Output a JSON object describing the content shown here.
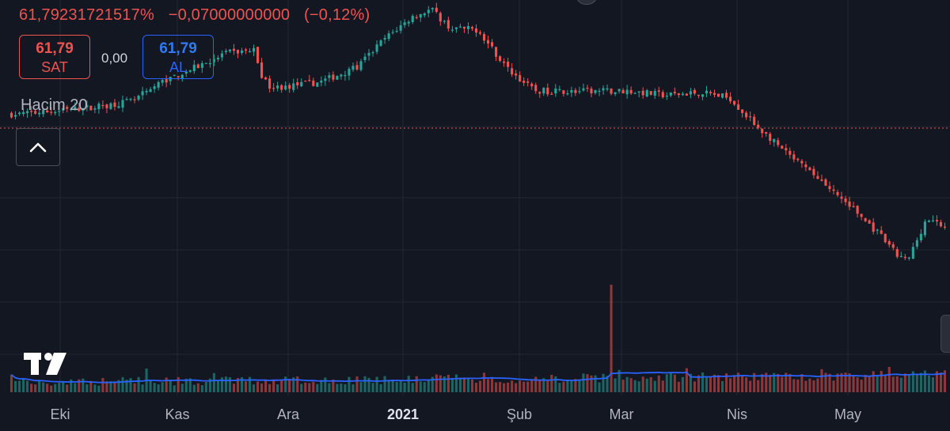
{
  "header": {
    "price": "61,79231721517%",
    "change": "−0,07000000000",
    "change_pct": "(−0,12%)"
  },
  "quote": {
    "sell_price": "61,79",
    "sell_label": "SAT",
    "spread": "0,00",
    "buy_price": "61,79",
    "buy_label": "AL"
  },
  "volume_indicator": {
    "label": "Hacim 20"
  },
  "colors": {
    "background": "#131722",
    "up": "#26a69a",
    "down": "#ef5350",
    "volume_ma": "#2962ff",
    "grid": "#232733",
    "price_line": "#ef5350"
  },
  "icons": {
    "collapse": "chevron-up-icon",
    "logo": "tradingview-logo-icon"
  },
  "chart_data": {
    "type": "candlestick",
    "x_tick_labels": [
      "Eki",
      "Kas",
      "Ara",
      "2021",
      "Şub",
      "Mar",
      "Nis",
      "May"
    ],
    "current_price": 61.79,
    "price_range": [
      40,
      90
    ],
    "price_anchors": [
      {
        "t": 0,
        "v": 75.4
      },
      {
        "t": 0.05,
        "v": 75.8
      },
      {
        "t": 0.1,
        "v": 76.6
      },
      {
        "t": 0.13,
        "v": 77.2
      },
      {
        "t": 0.16,
        "v": 79.8
      },
      {
        "t": 0.2,
        "v": 82.0
      },
      {
        "t": 0.23,
        "v": 83.8
      },
      {
        "t": 0.26,
        "v": 84.2
      },
      {
        "t": 0.27,
        "v": 80.0
      },
      {
        "t": 0.28,
        "v": 79.0
      },
      {
        "t": 0.33,
        "v": 79.8
      },
      {
        "t": 0.37,
        "v": 81.8
      },
      {
        "t": 0.4,
        "v": 85.8
      },
      {
        "t": 0.43,
        "v": 88.8
      },
      {
        "t": 0.45,
        "v": 89.8
      },
      {
        "t": 0.47,
        "v": 87.2
      },
      {
        "t": 0.5,
        "v": 87.0
      },
      {
        "t": 0.53,
        "v": 81.8
      },
      {
        "t": 0.56,
        "v": 78.6
      },
      {
        "t": 0.6,
        "v": 78.5
      },
      {
        "t": 0.66,
        "v": 78.6
      },
      {
        "t": 0.7,
        "v": 78.0
      },
      {
        "t": 0.74,
        "v": 78.4
      },
      {
        "t": 0.77,
        "v": 77.6
      },
      {
        "t": 0.79,
        "v": 74.8
      },
      {
        "t": 0.83,
        "v": 70.0
      },
      {
        "t": 0.86,
        "v": 67.0
      },
      {
        "t": 0.9,
        "v": 62.6
      },
      {
        "t": 0.93,
        "v": 58.8
      },
      {
        "t": 0.95,
        "v": 55.8
      },
      {
        "t": 0.96,
        "v": 55.2
      },
      {
        "t": 0.98,
        "v": 61.0
      },
      {
        "t": 1.0,
        "v": 59.8
      }
    ],
    "volume_spike": {
      "label_near": "Mar",
      "relative_height": 0.85
    }
  }
}
